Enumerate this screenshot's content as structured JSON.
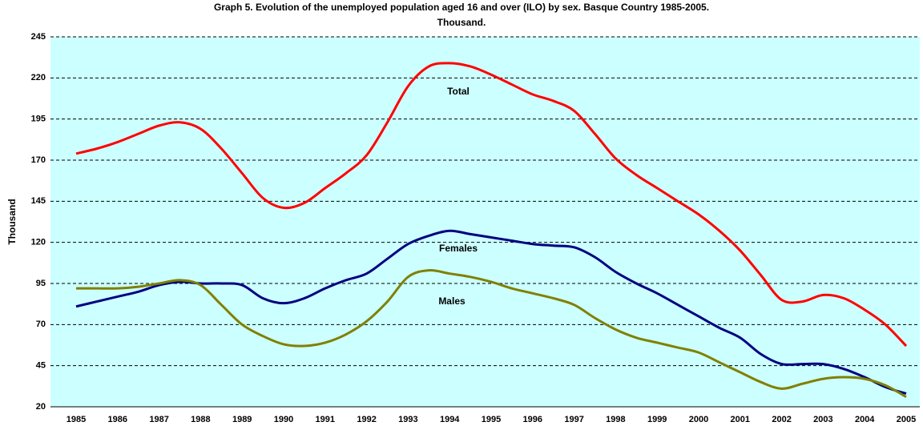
{
  "chart_data": {
    "type": "line",
    "title": "Graph 5. Evolution of the unemployed population aged 16 and over (ILO) by sex. Basque Country 1985-2005.",
    "subtitle": "Thousand.",
    "y_label": "Thousand",
    "categories": [
      "1985",
      null,
      "1986",
      null,
      "1987",
      null,
      "1988",
      null,
      "1989",
      null,
      "1990",
      null,
      "1991",
      null,
      "1992",
      null,
      "1993",
      null,
      "1994",
      null,
      "1995",
      null,
      "1996",
      null,
      "1997",
      null,
      "1998",
      null,
      "1999",
      null,
      "2000",
      null,
      "2001",
      null,
      "2002",
      null,
      "2003",
      null,
      "2004",
      null,
      "2005"
    ],
    "series": [
      {
        "name": "Total",
        "color": "#ff0000",
        "values": [
          174,
          177,
          181,
          186,
          191,
          193,
          189,
          177,
          162,
          147,
          141,
          144,
          153,
          162,
          173,
          193,
          215,
          227,
          229,
          227,
          222,
          216,
          210,
          206,
          200,
          186,
          171,
          161,
          153,
          145,
          137,
          127,
          115,
          100,
          85,
          84,
          88,
          86,
          79,
          70,
          57
        ]
      },
      {
        "name": "Females",
        "color": "#000080",
        "values": [
          81,
          84,
          87,
          90,
          94,
          96,
          95,
          95,
          94,
          86,
          83,
          86,
          92,
          97,
          101,
          110,
          119,
          124,
          127,
          125,
          123,
          121,
          119,
          118,
          117,
          111,
          102,
          95,
          89,
          82,
          75,
          68,
          62,
          52,
          46,
          46,
          46,
          43,
          38,
          32,
          28
        ]
      },
      {
        "name": "Males",
        "color": "#808000",
        "values": [
          92,
          92,
          92,
          93,
          95,
          97,
          94,
          82,
          70,
          63,
          58,
          57,
          59,
          64,
          72,
          84,
          99,
          103,
          101,
          99,
          96,
          92,
          89,
          86,
          82,
          74,
          67,
          62,
          59,
          56,
          53,
          47,
          41,
          35,
          31,
          34,
          37,
          38,
          37,
          33,
          26
        ]
      }
    ],
    "ylim": [
      20,
      245
    ],
    "yticks": [
      20,
      45,
      70,
      95,
      120,
      145,
      170,
      195,
      220,
      245
    ],
    "grid": true,
    "legend": "inline"
  }
}
